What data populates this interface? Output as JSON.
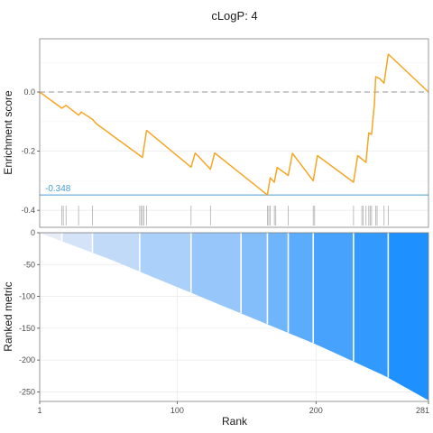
{
  "colors": {
    "es_line": "#f5a623",
    "zero_line": "#aaaaaa",
    "min_line": "#4a9bd0",
    "hit_tick": "#8c8c8c",
    "grid": "#ebebeb",
    "panel_border": "#7f7f7f",
    "gradient_start": "#e8ecf6",
    "gradient_end": "#1e90ff"
  },
  "chart_data": [
    {
      "type": "line",
      "title": "cLogP: 4",
      "ylabel": "Enrichment score",
      "xlim": [
        1,
        281
      ],
      "ylim": [
        -0.43,
        0.18
      ],
      "yticks": [
        0.0,
        -0.2,
        -0.4
      ],
      "ytick_labels": [
        "0.0",
        "-0.2",
        "-0.4"
      ],
      "grid": true,
      "series": [
        {
          "x": [
            1,
            17,
            20,
            29,
            31,
            39,
            42,
            75,
            78,
            110,
            113,
            124,
            127,
            165,
            167,
            170,
            172,
            180,
            183,
            198,
            201,
            227,
            230,
            236,
            238,
            240,
            242,
            243,
            246,
            249,
            252,
            281
          ],
          "y": [
            0.0,
            -0.055,
            -0.045,
            -0.078,
            -0.068,
            -0.092,
            -0.108,
            -0.221,
            -0.13,
            -0.254,
            -0.206,
            -0.261,
            -0.206,
            -0.348,
            -0.29,
            -0.305,
            -0.255,
            -0.282,
            -0.207,
            -0.3,
            -0.215,
            -0.305,
            -0.215,
            -0.238,
            -0.138,
            -0.143,
            -0.042,
            0.052,
            0.045,
            0.03,
            0.128,
            0.0
          ]
        }
      ],
      "reference_lines": [
        {
          "y": 0.0,
          "style": "dashed"
        },
        {
          "y": -0.348,
          "label": "-0.348"
        }
      ],
      "hits": [
        17,
        18,
        20,
        29,
        39,
        73,
        74,
        75,
        76,
        78,
        110,
        124,
        165,
        166,
        167,
        170,
        171,
        180,
        198,
        199,
        227,
        233,
        234,
        236,
        238,
        239,
        240,
        243,
        244,
        249,
        252
      ]
    },
    {
      "type": "area",
      "xlabel": "Rank",
      "ylabel": "Ranked metric",
      "xlim": [
        1,
        281
      ],
      "ylim": [
        -265,
        0
      ],
      "xticks": [
        1,
        100,
        200,
        281
      ],
      "xtick_labels": [
        "1",
        "100",
        "200",
        "281"
      ],
      "yticks": [
        0,
        -50,
        -100,
        -150,
        -200,
        -250
      ],
      "ytick_labels": [
        "0",
        "-50",
        "-100",
        "-150",
        "-200",
        "-250"
      ],
      "grid": true,
      "x": [
        1,
        50,
        100,
        150,
        200,
        250,
        281
      ],
      "values": [
        0,
        -40,
        -85,
        -130,
        -175,
        -225,
        -263
      ],
      "band_boundaries": [
        17,
        39,
        73,
        110,
        146,
        165,
        180,
        198,
        227,
        252,
        281
      ]
    }
  ]
}
